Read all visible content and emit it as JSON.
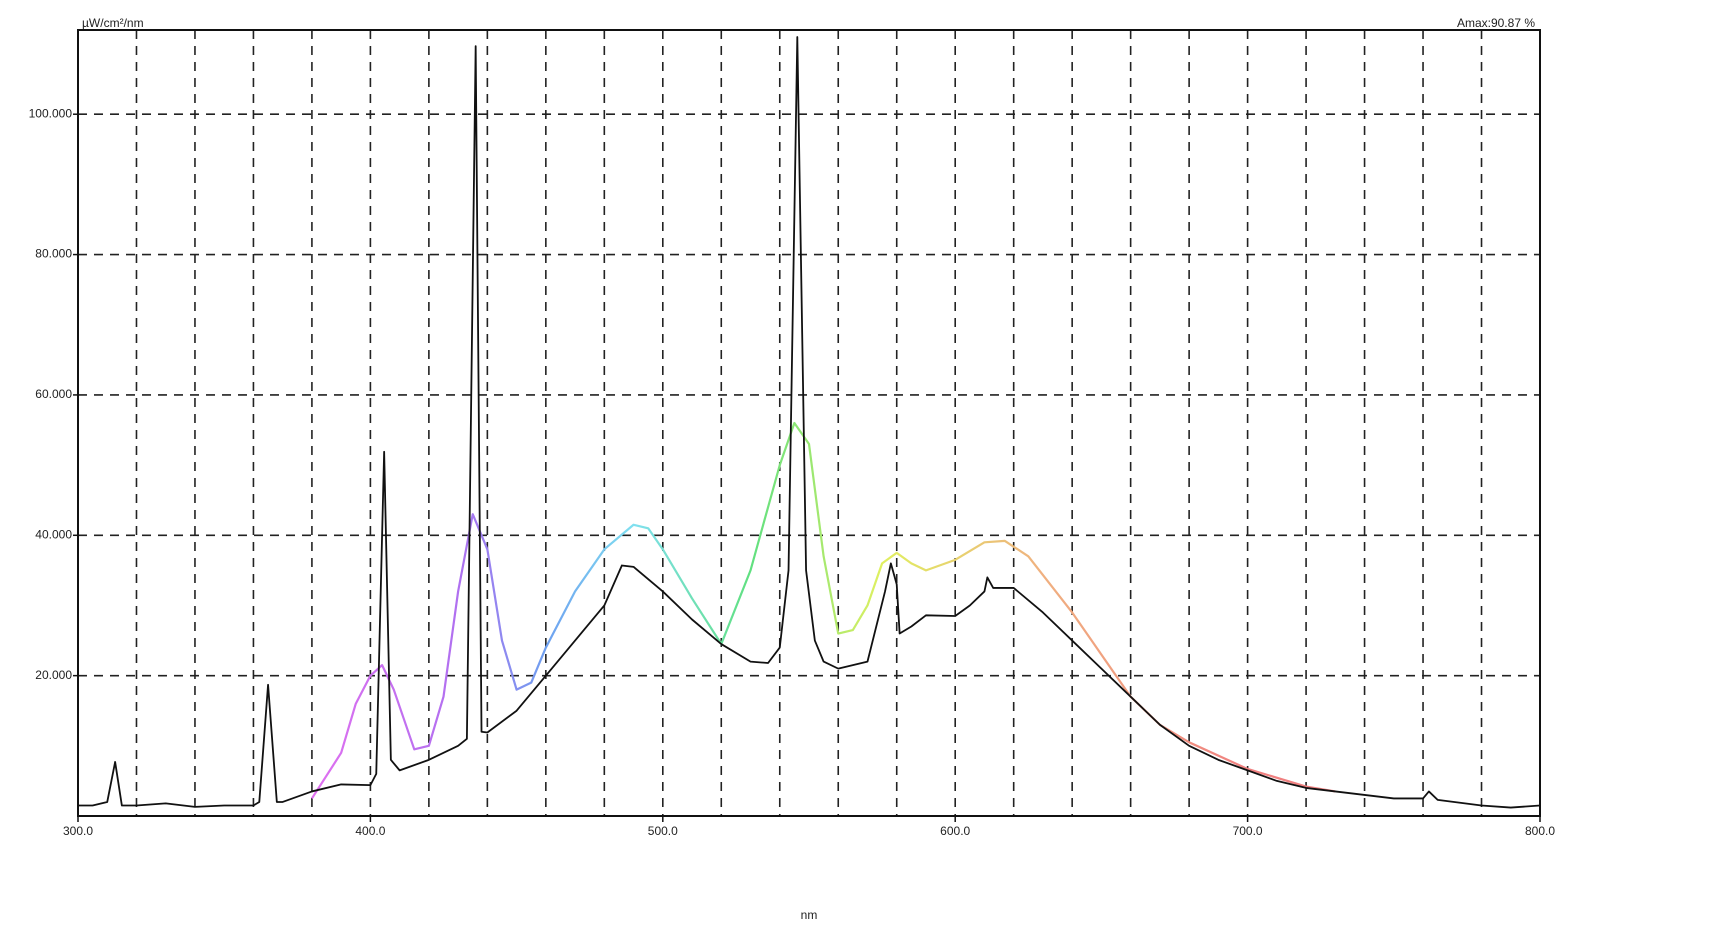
{
  "chart_data": {
    "type": "line",
    "y_axis_label": "µW/cm²/nm",
    "x_axis_label": "nm",
    "annotation": "Amax:90.87 %",
    "xlim": [
      300,
      800
    ],
    "ylim": [
      0,
      112
    ],
    "xticks": [
      {
        "value": 300,
        "label": "300.0"
      },
      {
        "value": 400,
        "label": "400.0"
      },
      {
        "value": 500,
        "label": "500.0"
      },
      {
        "value": 600,
        "label": "600.0"
      },
      {
        "value": 700,
        "label": "700.0"
      },
      {
        "value": 800,
        "label": "800.0"
      }
    ],
    "xgrid": [
      320,
      340,
      360,
      380,
      400,
      420,
      440,
      460,
      480,
      500,
      520,
      540,
      560,
      580,
      600,
      620,
      640,
      660,
      680,
      700,
      720,
      740,
      760,
      780
    ],
    "yticks": [
      {
        "value": 20,
        "label": "20.000"
      },
      {
        "value": 40,
        "label": "40.000"
      },
      {
        "value": 60,
        "label": "60.000"
      },
      {
        "value": 80,
        "label": "80.000"
      },
      {
        "value": 100,
        "label": "100.000"
      }
    ],
    "grid": true,
    "series": [
      {
        "color": "#111111",
        "x": [
          300,
          305,
          310,
          312.7,
          315,
          320,
          330,
          340,
          350,
          360,
          362,
          365,
          368,
          370,
          380,
          390,
          400,
          402,
          404.7,
          407,
          410,
          420,
          430,
          433,
          436,
          438,
          440,
          450,
          460,
          470,
          480,
          486,
          490,
          500,
          510,
          520,
          530,
          536,
          540,
          543,
          546,
          549,
          552,
          555,
          560,
          570,
          576,
          578,
          580,
          581,
          585,
          590,
          600,
          605,
          610,
          611,
          613,
          620,
          630,
          640,
          650,
          660,
          670,
          680,
          690,
          700,
          710,
          720,
          730,
          740,
          750,
          760,
          762,
          765,
          780,
          790,
          800
        ],
        "values": [
          1.5,
          1.5,
          2,
          7.7,
          1.5,
          1.5,
          1.8,
          1.3,
          1.5,
          1.5,
          2,
          18.7,
          2,
          2,
          3.5,
          4.5,
          4.4,
          6,
          51.9,
          8,
          6.5,
          8,
          10,
          11,
          109.7,
          12,
          11.9,
          15,
          20,
          25,
          30,
          35.7,
          35.5,
          32,
          28,
          24.5,
          22,
          21.8,
          24,
          35,
          111,
          35,
          25,
          22,
          21,
          22,
          32,
          36,
          33,
          26,
          27,
          28.6,
          28.5,
          30,
          32,
          34,
          32.5,
          32.5,
          29,
          25,
          21,
          17,
          13,
          10,
          8,
          6.5,
          5,
          4,
          3.5,
          3,
          2.5,
          2.5,
          3.5,
          2.3,
          1.5,
          1.2,
          1.5
        ]
      },
      {
        "gradient": [
          {
            "x": 380,
            "color": "#e070f0"
          },
          {
            "x": 430,
            "color": "#b070f0"
          },
          {
            "x": 460,
            "color": "#6ea0f0"
          },
          {
            "x": 490,
            "color": "#80e0f0"
          },
          {
            "x": 530,
            "color": "#60e080"
          },
          {
            "x": 575,
            "color": "#e0f060"
          },
          {
            "x": 630,
            "color": "#f0b080"
          },
          {
            "x": 700,
            "color": "#f08080"
          }
        ],
        "x": [
          380,
          390,
          395,
          400,
          404,
          408,
          415,
          420,
          425,
          430,
          435,
          440,
          445,
          450,
          455,
          460,
          470,
          480,
          490,
          495,
          500,
          510,
          520,
          530,
          540,
          545,
          550,
          555,
          560,
          565,
          570,
          575,
          580,
          585,
          590,
          600,
          610,
          617,
          625,
          640,
          650,
          660,
          670,
          680,
          700,
          720,
          730
        ],
        "values": [
          2.5,
          9,
          16,
          20,
          21.5,
          18,
          9.5,
          10,
          17,
          32,
          43,
          38,
          25,
          18,
          19,
          24,
          32,
          38,
          41.5,
          41,
          38,
          31,
          24.5,
          35,
          50,
          56,
          53,
          37,
          26,
          26.5,
          30,
          36,
          37.5,
          36,
          35,
          36.5,
          39,
          39.2,
          37,
          29,
          23,
          17,
          13,
          10.5,
          6.7,
          4.2,
          3.5
        ]
      }
    ]
  }
}
